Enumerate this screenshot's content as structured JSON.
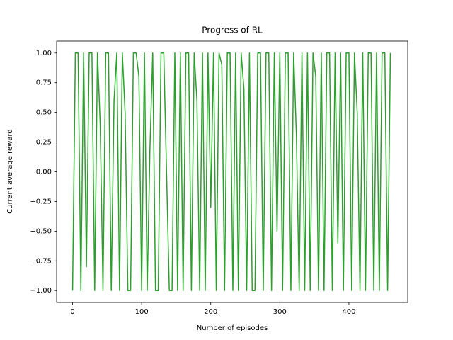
{
  "chart_data": {
    "type": "line",
    "title": "Progress of RL",
    "x_label": "Number of episodes",
    "y_label": "Current average reward",
    "x": [
      0,
      4,
      8,
      12,
      16,
      20,
      24,
      28,
      32,
      36,
      40,
      44,
      48,
      52,
      56,
      60,
      64,
      68,
      72,
      76,
      80,
      84,
      88,
      92,
      96,
      100,
      104,
      108,
      112,
      116,
      120,
      124,
      128,
      132,
      136,
      140,
      144,
      148,
      152,
      156,
      160,
      164,
      168,
      172,
      176,
      180,
      184,
      188,
      192,
      196,
      200,
      204,
      208,
      212,
      216,
      220,
      224,
      228,
      232,
      236,
      240,
      244,
      248,
      252,
      256,
      260,
      264,
      268,
      272,
      276,
      280,
      284,
      288,
      292,
      296,
      300,
      304,
      308,
      312,
      316,
      320,
      324,
      328,
      332,
      336,
      340,
      344,
      348,
      352,
      356,
      360,
      364,
      368,
      372,
      376,
      380,
      384,
      388,
      392,
      396,
      400,
      404,
      408,
      412,
      416,
      420,
      424,
      428,
      432,
      436,
      440,
      444,
      448,
      452,
      456,
      460
    ],
    "series": [
      {
        "color": "#2ca02c",
        "values": [
          -1,
          1,
          1,
          -1,
          1,
          -0.8,
          1,
          1,
          -1,
          1,
          0.4,
          -1,
          1,
          1,
          -1,
          0.6,
          1,
          -1,
          1,
          0.5,
          -1,
          -1,
          1,
          1,
          0.8,
          -1,
          1,
          -1,
          0.2,
          1,
          -1,
          -1,
          1,
          1,
          0,
          -1,
          -1,
          1,
          -1,
          1,
          -1,
          1,
          1,
          -1,
          1,
          0.6,
          -1,
          1,
          -1,
          1,
          -0.3,
          1,
          -1,
          1,
          0.9,
          -1,
          1,
          1,
          -1,
          1,
          -1,
          1,
          0.7,
          -1,
          1,
          -1,
          -1,
          1,
          1,
          -1,
          1,
          1,
          -1,
          1,
          -0.5,
          1,
          -1,
          1,
          1,
          -1,
          1,
          0.3,
          -1,
          1,
          -1,
          1,
          -1,
          1,
          0.8,
          -1,
          1,
          -1,
          1,
          1,
          -1,
          1,
          -0.6,
          1,
          -1,
          1,
          1,
          -1,
          1,
          0.5,
          -1,
          1,
          -1,
          1,
          1,
          -1,
          1,
          -1,
          1,
          1,
          -1,
          1
        ]
      }
    ],
    "xlim": [
      -23.1,
      485.1
    ],
    "ylim": [
      -1.1,
      1.1
    ],
    "xticks": [
      0,
      100,
      200,
      300,
      400
    ],
    "yticks": [
      {
        "value": -1,
        "label": "−1.00"
      },
      {
        "value": -0.75,
        "label": "−0.75"
      },
      {
        "value": -0.5,
        "label": "−0.50"
      },
      {
        "value": -0.25,
        "label": "−0.25"
      },
      {
        "value": 0,
        "label": "0.00"
      },
      {
        "value": 0.25,
        "label": "0.25"
      },
      {
        "value": 0.5,
        "label": "0.50"
      },
      {
        "value": 0.75,
        "label": "0.75"
      },
      {
        "value": 1,
        "label": "1.00"
      }
    ]
  }
}
